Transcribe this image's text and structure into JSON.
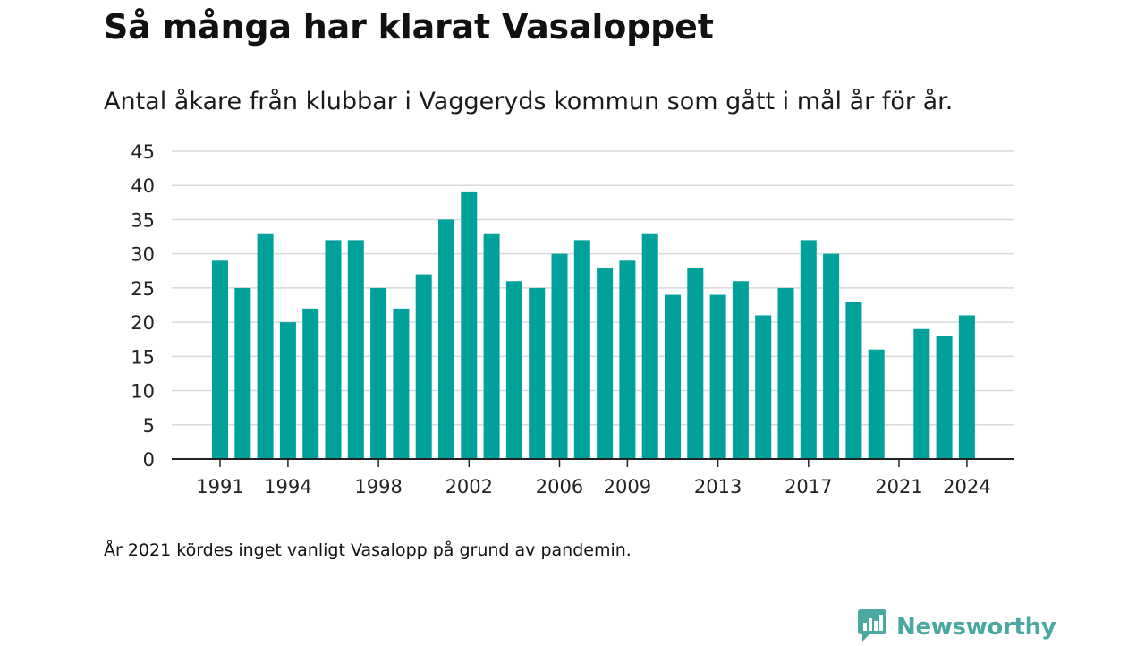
{
  "title": "Så många har klarat Vasaloppet",
  "subtitle": "Antal åkare från klubbar i Vaggeryds kommun som gått i mål år för år.",
  "footnote": "År 2021 kördes inget vanligt Vasalopp på grund av pandemin.",
  "brand": {
    "name": "Newsworthy",
    "icon": "newsworthy-logo-icon",
    "color": "#4aa8a0"
  },
  "colors": {
    "bar": "#00a19a",
    "grid": "#d9d9d9",
    "axis": "#222222"
  },
  "chart_data": {
    "type": "bar",
    "title": "",
    "xlabel": "",
    "ylabel": "",
    "categories": [
      1991,
      1992,
      1993,
      1994,
      1995,
      1996,
      1997,
      1998,
      1999,
      2000,
      2001,
      2002,
      2003,
      2004,
      2005,
      2006,
      2007,
      2008,
      2009,
      2010,
      2011,
      2012,
      2013,
      2014,
      2015,
      2016,
      2017,
      2018,
      2019,
      2020,
      2021,
      2022,
      2023,
      2024
    ],
    "values": [
      29,
      25,
      33,
      20,
      22,
      32,
      32,
      25,
      22,
      27,
      35,
      39,
      33,
      26,
      25,
      30,
      32,
      28,
      29,
      33,
      24,
      28,
      24,
      26,
      21,
      25,
      32,
      30,
      23,
      16,
      null,
      19,
      18,
      21
    ],
    "x_tick_labels": [
      "1991",
      "1994",
      "1998",
      "2002",
      "2006",
      "2009",
      "2013",
      "2017",
      "2021",
      "2024"
    ],
    "y_ticks": [
      0,
      5,
      10,
      15,
      20,
      25,
      30,
      35,
      40,
      45
    ],
    "ylim": [
      0,
      45
    ],
    "grid": true,
    "legend": "none"
  }
}
